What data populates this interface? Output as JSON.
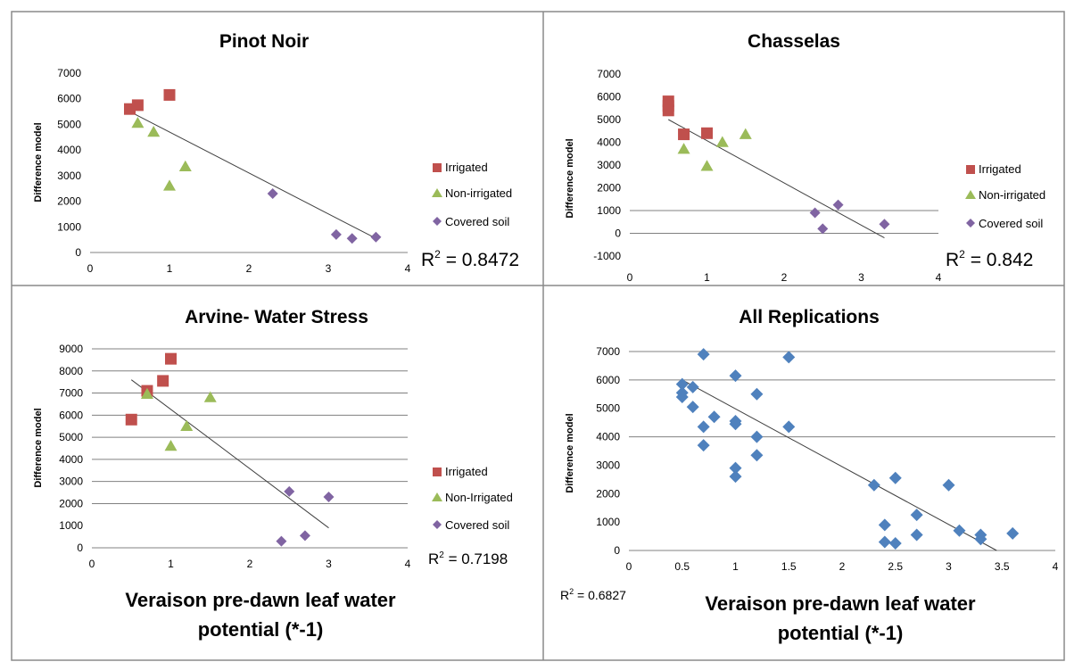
{
  "panels": [
    {
      "title": "Pinot Noir",
      "ylabel": "Difference model",
      "xlabel": "",
      "r2_label": "R",
      "r2_value": " = 0.8472",
      "legend": [
        "Irrigated",
        "Non-irrigated",
        "Covered soil"
      ]
    },
    {
      "title": "Chasselas",
      "ylabel": "Difference model",
      "xlabel": "",
      "r2_label": "R",
      "r2_value": " = 0.842",
      "legend": [
        "Irrigated",
        "Non-irrigated",
        "Covered soil"
      ]
    },
    {
      "title": "Arvine- Water Stress",
      "ylabel": "Difference model",
      "xlabel": "Veraison pre-dawn leaf water potential (*-1)",
      "r2_label": "R",
      "r2_value": " = 0.7198",
      "legend": [
        "Irrigated",
        "Non-Irrigated",
        "Covered soil"
      ]
    },
    {
      "title": "All Replications",
      "ylabel": "Difference model",
      "xlabel": "Veraison pre-dawn leaf water potential (*-1)",
      "r2_label": "R",
      "r2_value": " = 0.6827",
      "legend": []
    }
  ],
  "colors": {
    "irrigated": "#c0504d",
    "non_irrigated": "#9bbb59",
    "covered_soil": "#8064a2",
    "all": "#4f81bd",
    "trendline": "#404040",
    "gridline": "#808080"
  },
  "chart_data": [
    {
      "type": "scatter",
      "title": "Pinot Noir",
      "xlabel": "",
      "ylabel": "Difference model",
      "xlim": [
        0,
        4
      ],
      "ylim": [
        0,
        7000
      ],
      "xticks": [
        0,
        1,
        2,
        3,
        4
      ],
      "yticks": [
        0,
        1000,
        2000,
        3000,
        4000,
        5000,
        6000,
        7000
      ],
      "grid": "none",
      "legend": "right",
      "series": [
        {
          "name": "Irrigated",
          "marker": "square",
          "points": [
            [
              0.5,
              5600
            ],
            [
              0.6,
              5750
            ],
            [
              1.0,
              6150
            ]
          ]
        },
        {
          "name": "Non-irrigated",
          "marker": "triangle",
          "points": [
            [
              0.6,
              5050
            ],
            [
              0.8,
              4700
            ],
            [
              1.0,
              2600
            ],
            [
              1.2,
              3350
            ]
          ]
        },
        {
          "name": "Covered soil",
          "marker": "diamond",
          "points": [
            [
              2.3,
              2300
            ],
            [
              3.1,
              700
            ],
            [
              3.3,
              550
            ],
            [
              3.6,
              600
            ]
          ]
        }
      ],
      "trendline": [
        [
          0.5,
          5500
        ],
        [
          3.6,
          550
        ]
      ],
      "r_squared": 0.8472
    },
    {
      "type": "scatter",
      "title": "Chasselas",
      "xlabel": "",
      "ylabel": "Difference model",
      "xlim": [
        0,
        4
      ],
      "ylim": [
        -1000,
        7000
      ],
      "xticks": [
        0,
        1,
        2,
        3,
        4
      ],
      "yticks": [
        -1000,
        0,
        1000,
        2000,
        3000,
        4000,
        5000,
        6000,
        7000
      ],
      "grid": "none",
      "legend": "right",
      "series": [
        {
          "name": "Irrigated",
          "marker": "square",
          "points": [
            [
              0.5,
              5800
            ],
            [
              0.5,
              5600
            ],
            [
              0.5,
              5400
            ],
            [
              0.7,
              4350
            ],
            [
              1.0,
              4400
            ]
          ]
        },
        {
          "name": "Non-irrigated",
          "marker": "triangle",
          "points": [
            [
              0.7,
              3700
            ],
            [
              1.0,
              2950
            ],
            [
              1.2,
              4000
            ],
            [
              1.5,
              4350
            ]
          ]
        },
        {
          "name": "Covered soil",
          "marker": "diamond",
          "points": [
            [
              2.4,
              900
            ],
            [
              2.5,
              200
            ],
            [
              2.7,
              1250
            ],
            [
              3.3,
              400
            ]
          ]
        }
      ],
      "trendline": [
        [
          0.5,
          5000
        ],
        [
          3.3,
          -200
        ]
      ],
      "r_squared": 0.842
    },
    {
      "type": "scatter",
      "title": "Arvine- Water Stress",
      "xlabel": "Veraison pre-dawn leaf water potential (*-1)",
      "ylabel": "Difference model",
      "xlim": [
        0,
        4
      ],
      "ylim": [
        0,
        9000
      ],
      "xticks": [
        0,
        1,
        2,
        3,
        4
      ],
      "yticks": [
        0,
        1000,
        2000,
        3000,
        4000,
        5000,
        6000,
        7000,
        8000,
        9000
      ],
      "grid": "none",
      "legend": "right",
      "series": [
        {
          "name": "Irrigated",
          "marker": "square",
          "points": [
            [
              0.5,
              5800
            ],
            [
              0.7,
              7100
            ],
            [
              0.9,
              7550
            ],
            [
              1.0,
              8550
            ]
          ]
        },
        {
          "name": "Non-Irrigated",
          "marker": "triangle",
          "points": [
            [
              0.7,
              6950
            ],
            [
              1.0,
              4600
            ],
            [
              1.2,
              5500
            ],
            [
              1.5,
              6800
            ]
          ]
        },
        {
          "name": "Covered soil",
          "marker": "diamond",
          "points": [
            [
              2.4,
              300
            ],
            [
              2.5,
              2550
            ],
            [
              2.7,
              550
            ],
            [
              3.0,
              2300
            ]
          ]
        }
      ],
      "trendline": [
        [
          0.5,
          7600
        ],
        [
          3.0,
          900
        ]
      ],
      "r_squared": 0.7198
    },
    {
      "type": "scatter",
      "title": "All Replications",
      "xlabel": "Veraison pre-dawn leaf water potential (*-1)",
      "ylabel": "Difference model",
      "xlim": [
        0,
        4
      ],
      "ylim": [
        0,
        7000
      ],
      "xticks": [
        0,
        0.5,
        1,
        1.5,
        2,
        2.5,
        3,
        3.5,
        4
      ],
      "yticks": [
        0,
        1000,
        2000,
        3000,
        4000,
        5000,
        6000,
        7000
      ],
      "grid": "none",
      "legend": "none",
      "series": [
        {
          "name": "",
          "marker": "diamond",
          "points": [
            [
              0.5,
              5850
            ],
            [
              0.5,
              5550
            ],
            [
              0.5,
              5400
            ],
            [
              0.6,
              5750
            ],
            [
              0.6,
              5050
            ],
            [
              0.7,
              6900
            ],
            [
              0.7,
              4350
            ],
            [
              0.7,
              3700
            ],
            [
              0.8,
              4700
            ],
            [
              1.0,
              6150
            ],
            [
              1.0,
              4550
            ],
            [
              1.0,
              4450
            ],
            [
              1.0,
              2900
            ],
            [
              1.0,
              2600
            ],
            [
              1.2,
              5500
            ],
            [
              1.2,
              4000
            ],
            [
              1.2,
              3350
            ],
            [
              1.5,
              6800
            ],
            [
              1.5,
              4350
            ],
            [
              2.3,
              2300
            ],
            [
              2.4,
              900
            ],
            [
              2.4,
              300
            ],
            [
              2.5,
              2550
            ],
            [
              2.5,
              250
            ],
            [
              2.7,
              1250
            ],
            [
              2.7,
              550
            ],
            [
              3.0,
              2300
            ],
            [
              3.1,
              700
            ],
            [
              3.3,
              550
            ],
            [
              3.3,
              400
            ],
            [
              3.6,
              600
            ]
          ]
        }
      ],
      "trendline": [
        [
          0.5,
          6000
        ],
        [
          3.45,
          0
        ]
      ],
      "r_squared": 0.6827
    }
  ]
}
